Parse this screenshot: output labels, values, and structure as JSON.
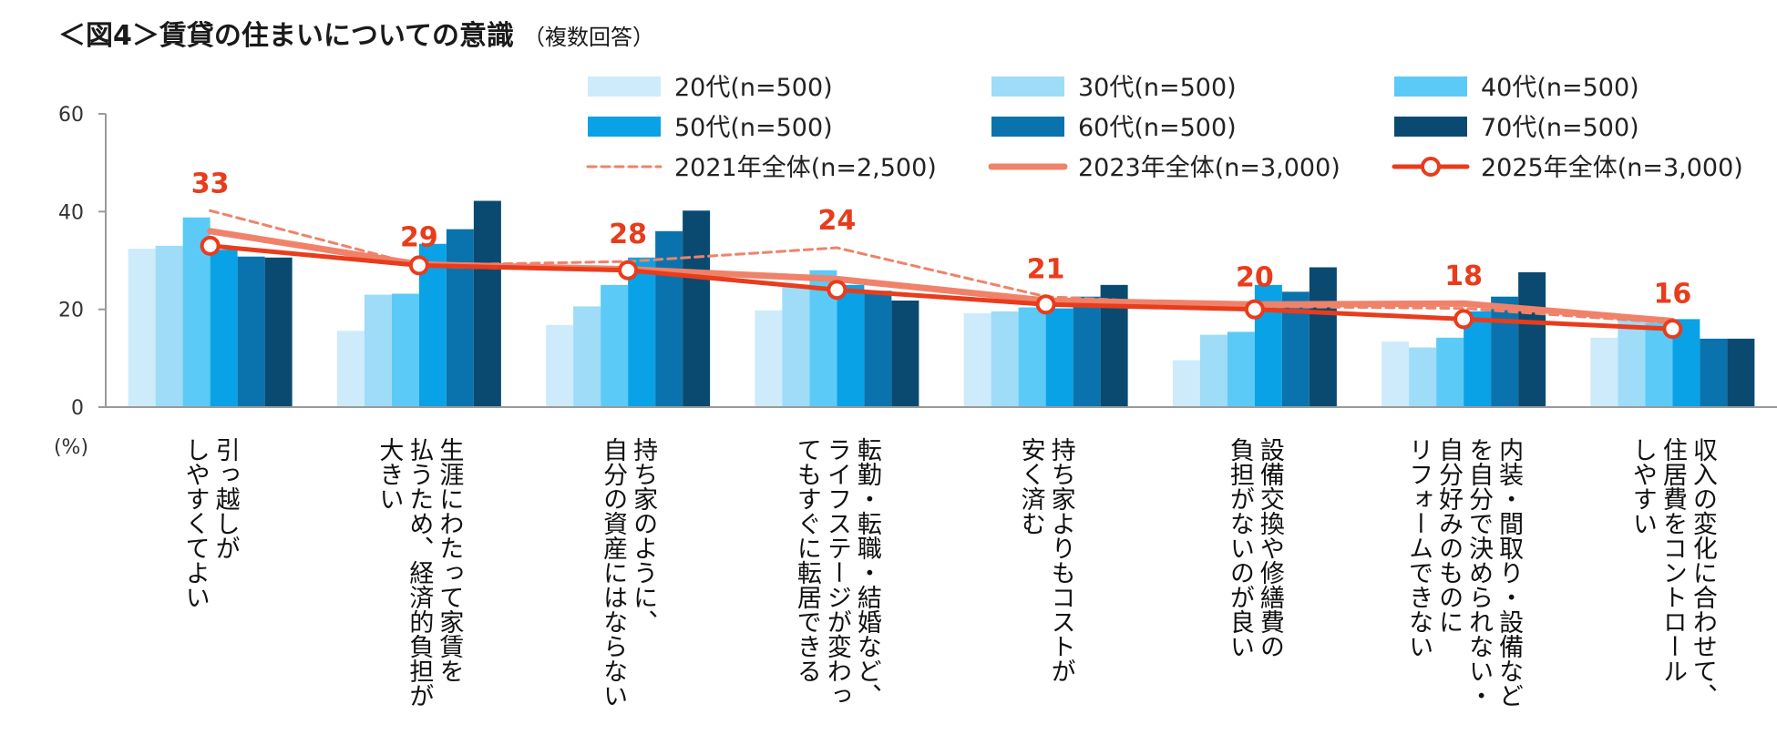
{
  "title": "＜図4＞賃貸の住まいについての意識",
  "subtitle": "（複数回答）",
  "chart_data": {
    "type": "bar",
    "unit_label": "(%)",
    "ylim": [
      0,
      60
    ],
    "yticks": [
      0,
      20,
      40,
      60
    ],
    "categories": [
      [
        "引っ越しが",
        "しやすくてよい"
      ],
      [
        "生涯にわたって家賃を",
        "払うため、経済的負担が",
        "大きい"
      ],
      [
        "持ち家のように、",
        "自分の資産にはならない"
      ],
      [
        "転勤・転職・結婚など、",
        "ライフステージが変わっ",
        "てもすぐに転居できる"
      ],
      [
        "持ち家よりもコストが",
        "安く済む"
      ],
      [
        "設備交換や修繕費の",
        "負担がないのが良い"
      ],
      [
        "内装・間取り・設備など",
        "を自分で決められない・",
        "自分好みのものに",
        "リフォームできない"
      ],
      [
        "収入の変化に合わせて、",
        "住居費をコントロール",
        "しやすい"
      ]
    ],
    "series": [
      {
        "name": "20代(n=500)",
        "color": "#cdebfb",
        "values": [
          32.4,
          15.6,
          16.8,
          19.8,
          19.2,
          9.6,
          13.4,
          14.2
        ]
      },
      {
        "name": "30代(n=500)",
        "color": "#9edcf8",
        "values": [
          33.0,
          23.0,
          20.6,
          25.0,
          19.6,
          14.8,
          12.2,
          18.6
        ]
      },
      {
        "name": "40代(n=500)",
        "color": "#5ccaf6",
        "values": [
          38.8,
          23.2,
          25.0,
          28.0,
          20.4,
          15.4,
          14.2,
          17.2
        ]
      },
      {
        "name": "50代(n=500)",
        "color": "#0aa2e6",
        "values": [
          32.2,
          33.4,
          30.6,
          25.0,
          20.2,
          25.0,
          19.6,
          18.0
        ]
      },
      {
        "name": "60代(n=500)",
        "color": "#0a73ad",
        "values": [
          30.8,
          36.4,
          36.0,
          23.8,
          22.6,
          23.6,
          22.6,
          14.0
        ]
      },
      {
        "name": "70代(n=500)",
        "color": "#0a4a70",
        "values": [
          30.6,
          42.2,
          40.2,
          21.8,
          25.0,
          28.6,
          27.6,
          14.0
        ]
      }
    ],
    "lines": [
      {
        "name": "2021年全体(n=2,500)",
        "style": "dashed",
        "color": "#f0826a",
        "values": [
          40.2,
          29.0,
          29.8,
          32.6,
          22.6,
          20.6,
          20.2,
          17.2
        ]
      },
      {
        "name": "2023年全体(n=3,000)",
        "style": "solid",
        "color": "#f0826a",
        "values": [
          36.0,
          29.2,
          28.2,
          26.2,
          21.8,
          21.0,
          21.2,
          17.6
        ]
      },
      {
        "name": "2025年全体(n=3,000)",
        "style": "marker",
        "color": "#e83c1c",
        "values": [
          33,
          29,
          28,
          24,
          21,
          20,
          18,
          16
        ]
      }
    ],
    "data_labels": [
      "33",
      "29",
      "28",
      "24",
      "21",
      "20",
      "18",
      "16"
    ]
  }
}
